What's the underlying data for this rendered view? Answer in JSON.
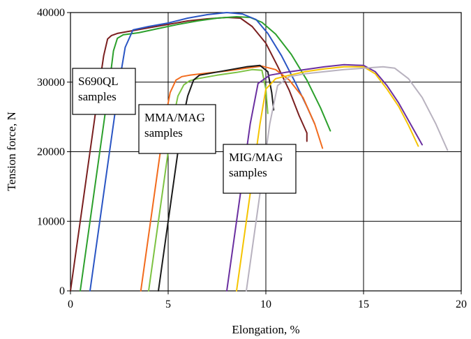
{
  "chart_data": {
    "type": "line",
    "title": "",
    "xlabel": "Elongation, %",
    "ylabel": "Tension force, N",
    "xlim": [
      0,
      20
    ],
    "ylim": [
      0,
      40000
    ],
    "xticks": [
      0,
      5,
      10,
      15,
      20
    ],
    "yticks": [
      0,
      10000,
      20000,
      30000,
      40000
    ],
    "grid": true,
    "annotations": [
      {
        "lines": [
          "S690QL",
          "samples"
        ]
      },
      {
        "lines": [
          "MMA/MAG",
          "samples"
        ]
      },
      {
        "lines": [
          "MIG/MAG",
          "samples"
        ]
      }
    ],
    "series": [
      {
        "group": "S690QL",
        "color": "#7a1f1f",
        "x": [
          0,
          0.3,
          0.6,
          0.9,
          1.2,
          1.5,
          1.7,
          1.9,
          2.1,
          2.4,
          3,
          4,
          5,
          6,
          7,
          8,
          8.7,
          9.3,
          10,
          10.6,
          11.2,
          11.7,
          12.1,
          12.1
        ],
        "y": [
          0,
          6000,
          12000,
          18000,
          24000,
          30000,
          33800,
          36200,
          36700,
          37000,
          37300,
          37800,
          38300,
          38800,
          39100,
          39300,
          39200,
          38000,
          35600,
          32300,
          28800,
          25200,
          22700,
          21500
        ]
      },
      {
        "group": "S690QL",
        "color": "#2ca02c",
        "x": [
          0.5,
          0.8,
          1.1,
          1.4,
          1.7,
          2.0,
          2.2,
          2.4,
          2.7,
          3.5,
          4.5,
          5.5,
          6.5,
          7.5,
          8.5,
          9.2,
          9.8,
          10.5,
          11.3,
          12.1,
          12.8,
          13.3
        ],
        "y": [
          0,
          6000,
          12000,
          18000,
          24000,
          30000,
          34500,
          36300,
          36800,
          37100,
          37700,
          38300,
          38800,
          39200,
          39400,
          39300,
          38600,
          36900,
          34000,
          30300,
          26300,
          23000
        ]
      },
      {
        "group": "S690QL",
        "color": "#2a55c4",
        "x": [
          1.0,
          1.3,
          1.6,
          1.9,
          2.2,
          2.5,
          2.8,
          3.2,
          4,
          5,
          6,
          7,
          8,
          8.8,
          9.5,
          10.1,
          10.8,
          11.5,
          12.1,
          12.5
        ],
        "y": [
          0,
          6000,
          12000,
          18000,
          24000,
          30000,
          35000,
          37500,
          38000,
          38500,
          39200,
          39700,
          40000,
          39800,
          39000,
          37000,
          33800,
          30000,
          26500,
          24000
        ]
      },
      {
        "group": "MMA/MAG",
        "color": "#f26b1d",
        "x": [
          3.6,
          3.9,
          4.2,
          4.5,
          4.8,
          5.1,
          5.4,
          5.7,
          6.1,
          7,
          8,
          9,
          9.8,
          10.5,
          11.2,
          11.9,
          12.5,
          12.9
        ],
        "y": [
          0,
          6000,
          12000,
          18000,
          24000,
          28500,
          30300,
          30800,
          31000,
          31300,
          31600,
          32000,
          32300,
          31800,
          30300,
          27800,
          24000,
          20500
        ]
      },
      {
        "group": "MMA/MAG",
        "color": "#7cc242",
        "x": [
          4.0,
          4.3,
          4.6,
          4.9,
          5.2,
          5.5,
          5.8,
          6.1,
          6.5,
          7.5,
          8.5,
          9.3,
          9.8,
          10.0,
          10.1
        ],
        "y": [
          0,
          6000,
          12000,
          18000,
          24000,
          28000,
          29600,
          30200,
          30500,
          31000,
          31400,
          31800,
          31700,
          29000,
          25500
        ]
      },
      {
        "group": "MMA/MAG",
        "color": "#1a1a1a",
        "x": [
          4.5,
          4.8,
          5.1,
          5.4,
          5.7,
          6.0,
          6.3,
          6.6,
          7,
          8,
          9,
          9.7,
          10.1,
          10.3,
          10.4
        ],
        "y": [
          0,
          6000,
          12000,
          18000,
          24000,
          28000,
          30300,
          31000,
          31200,
          31700,
          32200,
          32400,
          31500,
          28500,
          26000
        ]
      },
      {
        "group": "MIG/MAG",
        "color": "#6a2fa0",
        "x": [
          8.0,
          8.3,
          8.6,
          8.9,
          9.2,
          9.6,
          10.2,
          11,
          12,
          13,
          14,
          15,
          15.6,
          16.2,
          16.8,
          17.4,
          18.0
        ],
        "y": [
          0,
          6000,
          12000,
          18000,
          24000,
          29800,
          31000,
          31400,
          31800,
          32200,
          32500,
          32400,
          31500,
          29500,
          27000,
          24000,
          21000
        ]
      },
      {
        "group": "MIG/MAG",
        "color": "#f5c400",
        "x": [
          8.5,
          8.8,
          9.1,
          9.4,
          9.7,
          10.0,
          10.5,
          11.2,
          12,
          13,
          14,
          15,
          15.6,
          16.2,
          16.8,
          17.3,
          17.8
        ],
        "y": [
          0,
          6000,
          12000,
          18000,
          24000,
          29000,
          30500,
          31000,
          31500,
          31900,
          32200,
          32200,
          31200,
          29000,
          26500,
          23800,
          20800
        ]
      },
      {
        "group": "MIG/MAG",
        "color": "#b8b2bf",
        "x": [
          9.0,
          9.3,
          9.6,
          9.9,
          10.2,
          10.6,
          11.2,
          12,
          13,
          14,
          15,
          16,
          16.6,
          17.3,
          18,
          18.7,
          19.3
        ],
        "y": [
          0,
          6000,
          12000,
          18000,
          24000,
          29500,
          30800,
          31200,
          31500,
          31800,
          32000,
          32200,
          32000,
          30500,
          27800,
          24000,
          20200
        ]
      }
    ]
  }
}
